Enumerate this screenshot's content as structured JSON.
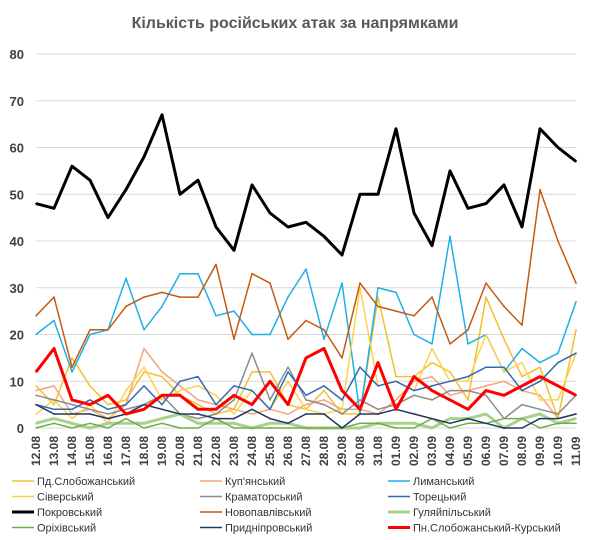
{
  "chart_data": {
    "type": "line",
    "title": "Кількість російських атак за напрямками",
    "ylim": [
      0,
      80
    ],
    "yticks": [
      0,
      10,
      20,
      30,
      40,
      50,
      60,
      70,
      80
    ],
    "grid": true,
    "legend_position": "bottom",
    "x": [
      "12.08",
      "13.08",
      "14.08",
      "15.08",
      "16.08",
      "17.08",
      "18.08",
      "19.08",
      "20.08",
      "21.08",
      "22.08",
      "23.08",
      "24.08",
      "25.08",
      "26.08",
      "27.08",
      "28.08",
      "29.08",
      "30.08",
      "31.08",
      "01.09",
      "02.09",
      "03.09",
      "04.09",
      "05.09",
      "06.09",
      "07.09",
      "08.09",
      "09.09",
      "10.09",
      "11.09"
    ],
    "series": [
      {
        "name": "Пд.Слобожанський",
        "color": "#f2c12e",
        "width": 1.5,
        "values": [
          9,
          5,
          15,
          9,
          5,
          6,
          12,
          11,
          7,
          5,
          3,
          4,
          12,
          12,
          5,
          4,
          8,
          3,
          3,
          28,
          11,
          11,
          14,
          12,
          6,
          28,
          19,
          11,
          13,
          2,
          21
        ]
      },
      {
        "name": "Куп'янський",
        "color": "#f4a57a",
        "width": 1.5,
        "values": [
          8,
          9,
          3,
          4,
          2,
          5,
          17,
          12,
          9,
          6,
          5,
          4,
          3,
          4,
          3,
          5,
          6,
          4,
          4,
          3,
          6,
          10,
          11,
          7,
          8,
          9,
          10,
          8,
          7,
          2,
          3
        ]
      },
      {
        "name": "Лиманський",
        "color": "#1fb0e6",
        "width": 1.5,
        "values": [
          20,
          23,
          12,
          20,
          21,
          32,
          21,
          26,
          33,
          33,
          24,
          25,
          20,
          20,
          28,
          34,
          19,
          31,
          3,
          30,
          29,
          20,
          18,
          41,
          18,
          20,
          12,
          17,
          14,
          16,
          27
        ]
      },
      {
        "name": "Сіверський",
        "color": "#ffd24d",
        "width": 1.5,
        "values": [
          3,
          6,
          2,
          5,
          1,
          8,
          13,
          6,
          8,
          9,
          7,
          3,
          8,
          4,
          10,
          4,
          3,
          4,
          30,
          9,
          10,
          8,
          17,
          10,
          10,
          20,
          12,
          14,
          6,
          6,
          16
        ]
      },
      {
        "name": "Краматорський",
        "color": "#8c8c8c",
        "width": 1.5,
        "values": [
          7,
          6,
          5,
          4,
          3,
          4,
          5,
          7,
          3,
          2,
          3,
          6,
          16,
          6,
          13,
          6,
          5,
          3,
          6,
          4,
          5,
          7,
          6,
          8,
          8,
          7,
          2,
          5,
          4,
          3,
          7
        ]
      },
      {
        "name": "Торецький",
        "color": "#2e6db4",
        "width": 1.5,
        "values": [
          5,
          4,
          4,
          6,
          4,
          5,
          9,
          5,
          10,
          11,
          5,
          9,
          8,
          4,
          12,
          7,
          9,
          6,
          13,
          9,
          10,
          8,
          9,
          10,
          11,
          13,
          13,
          8,
          10,
          14,
          16
        ]
      },
      {
        "name": "Покровський",
        "color": "#000000",
        "width": 3,
        "values": [
          48,
          47,
          56,
          53,
          45,
          51,
          58,
          67,
          50,
          53,
          43,
          38,
          52,
          46,
          43,
          44,
          41,
          37,
          50,
          50,
          64,
          46,
          39,
          55,
          47,
          48,
          52,
          43,
          64,
          60,
          57
        ]
      },
      {
        "name": "Новопавлівський",
        "color": "#c55a11",
        "width": 1.5,
        "values": [
          24,
          28,
          13,
          21,
          21,
          26,
          28,
          29,
          28,
          28,
          35,
          19,
          33,
          31,
          19,
          23,
          21,
          15,
          31,
          26,
          25,
          24,
          28,
          18,
          21,
          31,
          26,
          22,
          51,
          40,
          31
        ]
      },
      {
        "name": "Гуляйпільський",
        "color": "#a9d18e",
        "width": 3,
        "values": [
          1,
          2,
          1,
          0,
          1,
          1,
          1,
          2,
          3,
          1,
          1,
          1,
          0,
          1,
          1,
          0,
          0,
          0,
          0,
          1,
          1,
          1,
          0,
          2,
          2,
          3,
          0,
          2,
          3,
          1,
          2
        ]
      },
      {
        "name": "Оріхівський",
        "color": "#70ad47",
        "width": 1.5,
        "values": [
          0,
          1,
          0,
          1,
          0,
          2,
          0,
          1,
          0,
          0,
          2,
          0,
          0,
          0,
          0,
          0,
          0,
          0,
          1,
          1,
          0,
          0,
          2,
          0,
          1,
          1,
          2,
          2,
          0,
          1,
          1
        ]
      },
      {
        "name": "Придніпровський",
        "color": "#203864",
        "width": 1.5,
        "values": [
          5,
          3,
          3,
          3,
          2,
          3,
          5,
          4,
          3,
          3,
          2,
          2,
          4,
          2,
          1,
          3,
          3,
          0,
          3,
          3,
          4,
          3,
          2,
          1,
          2,
          1,
          0,
          0,
          2,
          2,
          3
        ]
      },
      {
        "name": "Пн.Слобожанський-Курський",
        "color": "#ff0000",
        "width": 3,
        "values": [
          12,
          17,
          6,
          5,
          7,
          3,
          4,
          7,
          7,
          4,
          4,
          7,
          5,
          10,
          5,
          15,
          17,
          8,
          4,
          14,
          4,
          11,
          8,
          6,
          4,
          8,
          7,
          9,
          11,
          9,
          7
        ]
      }
    ]
  }
}
